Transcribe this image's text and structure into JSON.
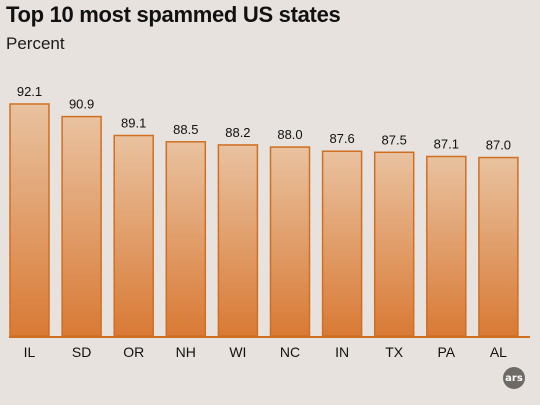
{
  "chart_data": {
    "type": "bar",
    "title": "Top 10 most spammed US states",
    "subtitle": "Percent",
    "categories": [
      "IL",
      "SD",
      "OR",
      "NH",
      "WI",
      "NC",
      "IN",
      "TX",
      "PA",
      "AL"
    ],
    "values": [
      92.1,
      90.9,
      89.1,
      88.5,
      88.2,
      88.0,
      87.6,
      87.5,
      87.1,
      87.0
    ],
    "value_labels": [
      "92.1",
      "90.9",
      "89.1",
      "88.5",
      "88.2",
      "88.0",
      "87.6",
      "87.5",
      "87.1",
      "87.0"
    ],
    "ylim": [
      70,
      92.1
    ],
    "grid": false,
    "colors": {
      "bar_top": "#e9c2a0",
      "bar_bottom": "#d97a35",
      "bar_border": "#cf6f22",
      "baseline": "#cf6f22"
    }
  },
  "watermark": "ars"
}
